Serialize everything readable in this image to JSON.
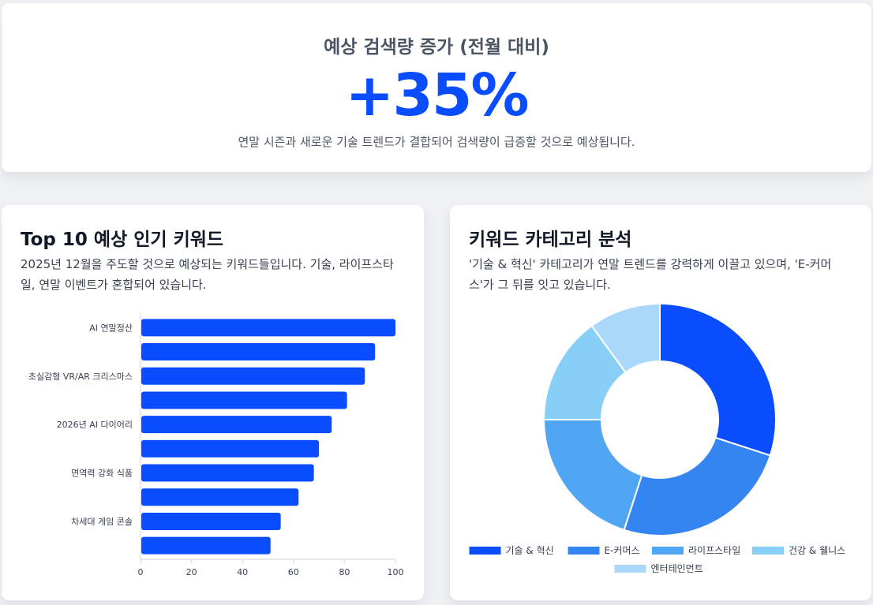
{
  "hero": {
    "title": "예상 검색량 증가 (전월 대비)",
    "value": "+35%",
    "description": "연말 시즌과 새로운 기술 트렌드가 결합되어 검색량이 급증할 것으로 예상됩니다."
  },
  "keywords_card": {
    "title": "Top 10 예상 인기 키워드",
    "description": "2025년 12월을 주도할 것으로 예상되는 키워드들입니다. 기술, 라이프스타일, 연말 이벤트가 혼합되어 있습니다."
  },
  "category_card": {
    "title": "키워드 카테고리 분석",
    "description": "'기술 & 혁신' 카테고리가 연말 트렌드를 강력하게 이끌고 있으며, 'E-커머스'가 그 뒤를 잇고 있습니다."
  },
  "colors": {
    "accent": "#0a4dff",
    "bar": "#0a4dff"
  },
  "chart_data": [
    {
      "type": "bar",
      "orientation": "horizontal",
      "categories": [
        "AI 연말정산",
        "",
        "초실감형 VR/AR 크리스마스",
        "",
        "2026년 AI 다이어리",
        "",
        "면역력 강화 식품",
        "",
        "차세대 게임 콘솔",
        ""
      ],
      "values": [
        100,
        92,
        88,
        81,
        75,
        70,
        68,
        62,
        55,
        51
      ],
      "xlim": [
        0,
        100
      ],
      "xticks": [
        "0",
        "20",
        "40",
        "60",
        "80",
        "100"
      ],
      "grid": false,
      "color": "#0a4dff"
    },
    {
      "type": "pie",
      "donut": true,
      "labels": [
        "기술 & 혁신",
        "E-커머스",
        "라이프스타일",
        "건강 & 웰니스",
        "엔터테인먼트"
      ],
      "values": [
        30,
        25,
        20,
        15,
        10
      ],
      "colors": [
        "#0a4dff",
        "#3485f2",
        "#51a6f4",
        "#88cff7",
        "#a9d8fb"
      ],
      "legend": "bottom"
    }
  ]
}
